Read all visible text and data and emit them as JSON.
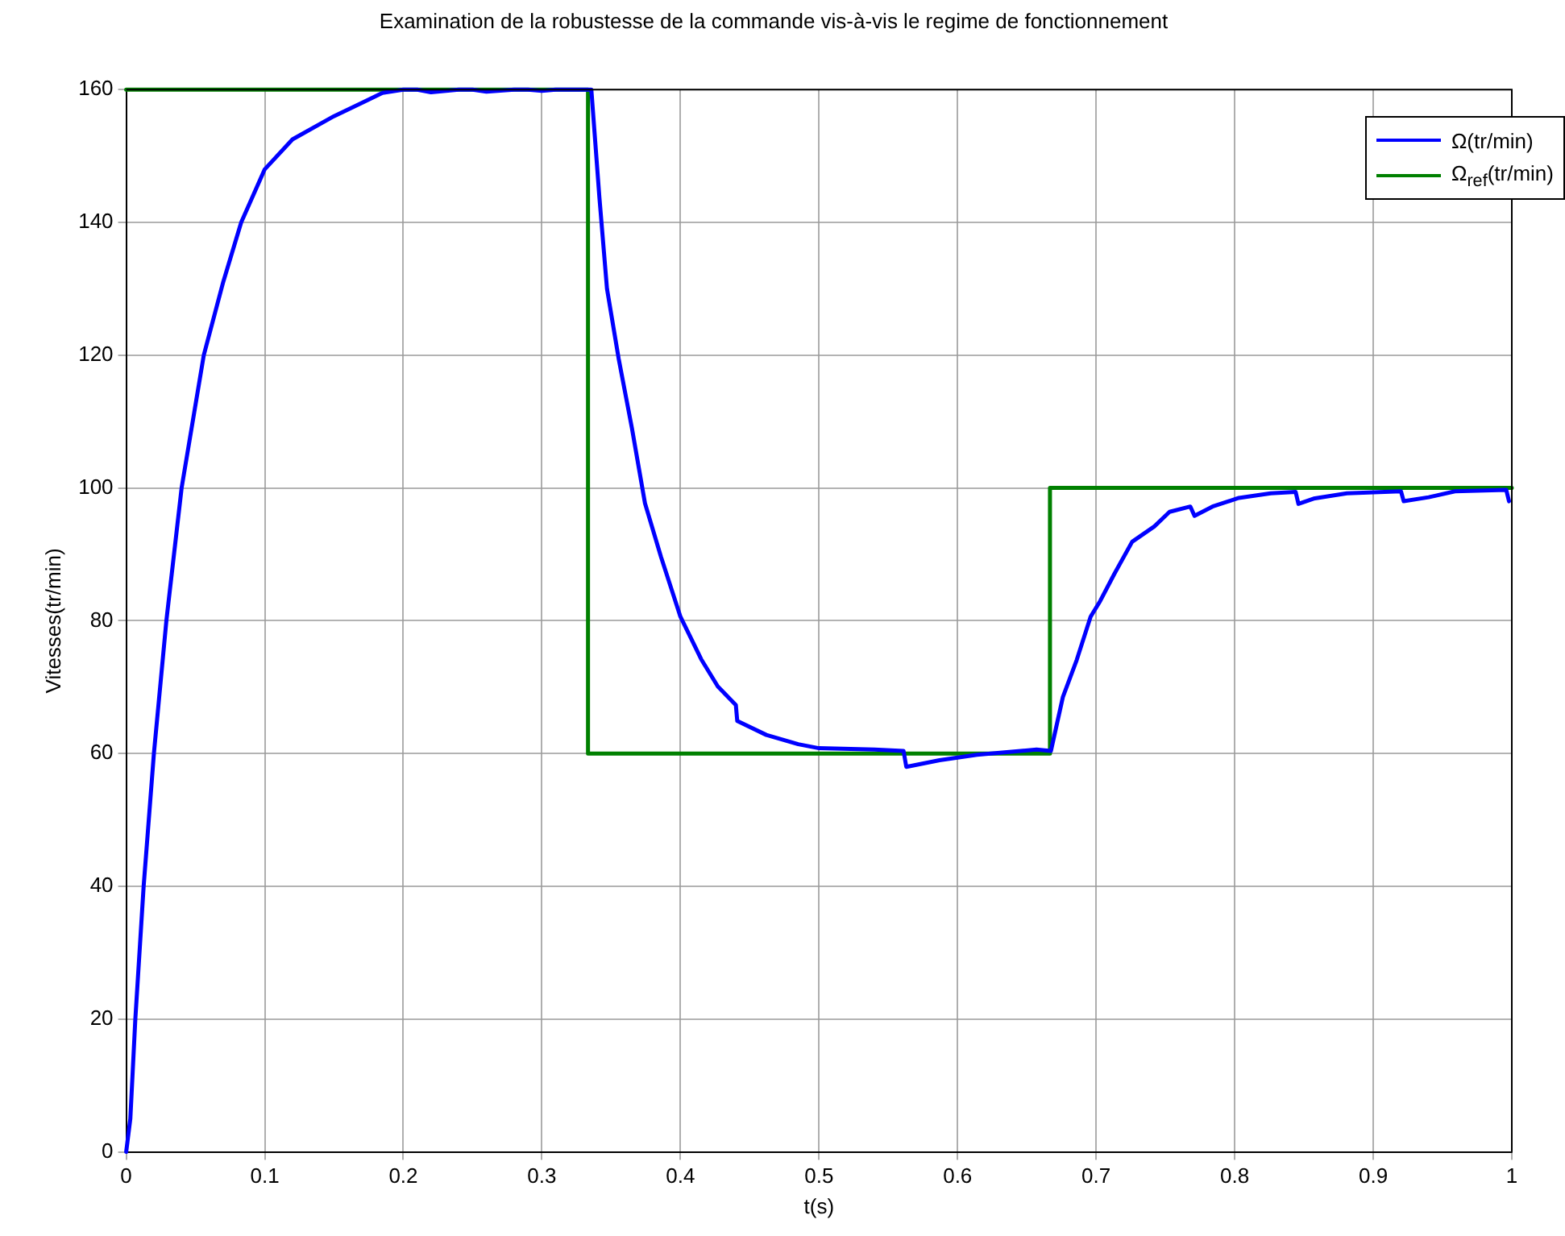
{
  "chart_data": {
    "type": "line",
    "title": "Examination de la robustesse de la commande vis-à-vis le regime de fonctionnement",
    "xlabel": "t(s)",
    "ylabel": "Vitesses(tr/min)",
    "xlim": [
      0,
      1
    ],
    "xticks": [
      0,
      0.1,
      0.2,
      0.3,
      0.4,
      0.5,
      0.6,
      0.7,
      0.8,
      0.9,
      1
    ],
    "ylim": [
      0,
      160
    ],
    "yticks": [
      0,
      20,
      40,
      60,
      80,
      100,
      120,
      140,
      160
    ],
    "grid": true,
    "legend": "top right",
    "marker": "none",
    "line_style": "solid",
    "series": [
      {
        "name": "Ω(tr/min)",
        "color": "#0000ff",
        "x": [
          0,
          0.003,
          0.0066,
          0.0126,
          0.02,
          0.029,
          0.04,
          0.056,
          0.07,
          0.083,
          0.1,
          0.12,
          0.15,
          0.17,
          0.185,
          0.2,
          0.21,
          0.22,
          0.24,
          0.25,
          0.26,
          0.28,
          0.29,
          0.3,
          0.31,
          0.325,
          0.3357,
          0.3415,
          0.347,
          0.3554,
          0.365,
          0.3744,
          0.386,
          0.4,
          0.415,
          0.427,
          0.44,
          0.441,
          0.462,
          0.485,
          0.5,
          0.54,
          0.561,
          0.563,
          0.587,
          0.614,
          0.657,
          0.6674,
          0.676,
          0.686,
          0.696,
          0.703,
          0.713,
          0.726,
          0.742,
          0.753,
          0.768,
          0.771,
          0.784,
          0.803,
          0.826,
          0.844,
          0.846,
          0.857,
          0.881,
          0.92,
          0.922,
          0.94,
          0.959,
          0.996,
          0.998
        ],
        "values": [
          0,
          5,
          20,
          40,
          60,
          80,
          100,
          120,
          131,
          140,
          148,
          152.5,
          156,
          158,
          159.5,
          160,
          160,
          159.6,
          160,
          160,
          159.7,
          160,
          160,
          159.8,
          160,
          160,
          160,
          143.8,
          130,
          119.5,
          109,
          97.7,
          89.6,
          80.6,
          74.2,
          70.1,
          67.3,
          64.9,
          62.8,
          61.4,
          60.8,
          60.6,
          60.4,
          58,
          59,
          59.8,
          60.6,
          60.4,
          68.5,
          74.1,
          80.6,
          83,
          87,
          91.9,
          94.2,
          96.4,
          97.2,
          95.8,
          97.2,
          98.5,
          99.2,
          99.4,
          97.6,
          98.4,
          99.2,
          99.5,
          98,
          98.6,
          99.5,
          99.7,
          98
        ]
      },
      {
        "name": "Ω$_{ref}$(tr/min)",
        "color": "#008000",
        "type": "step",
        "x": [
          0,
          0.3333,
          0.6667,
          1
        ],
        "values": [
          160,
          60,
          100,
          100
        ]
      }
    ]
  }
}
